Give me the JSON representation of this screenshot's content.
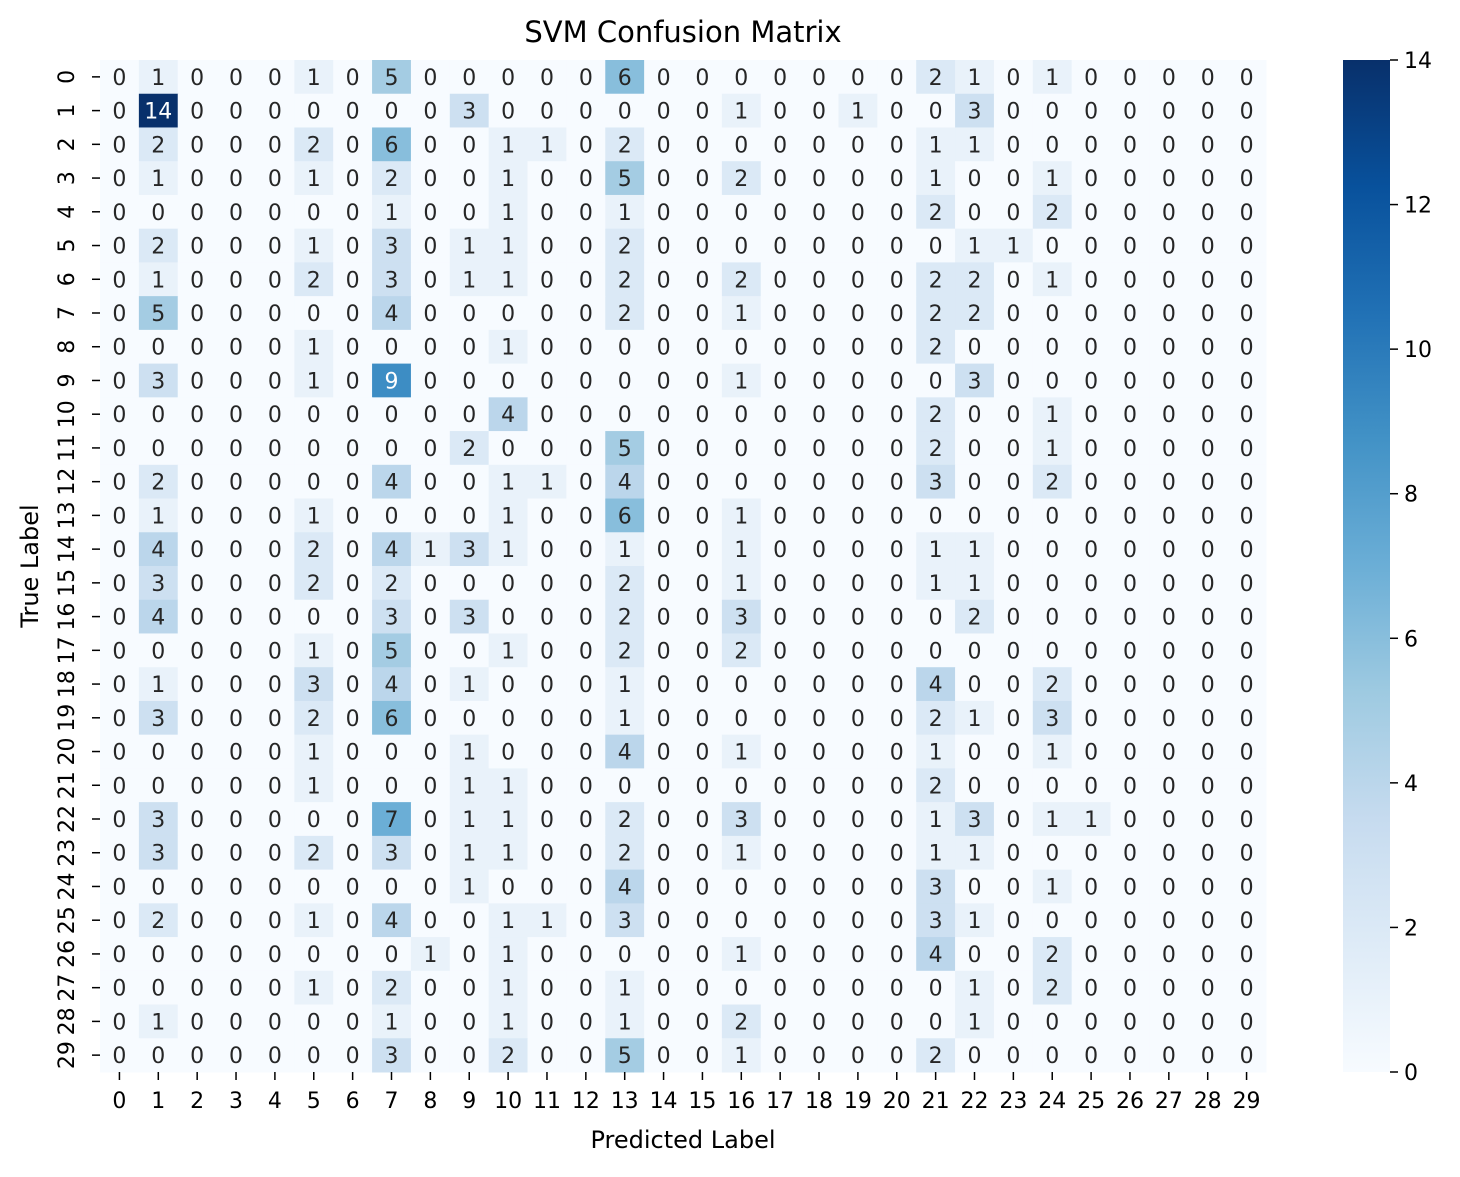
{
  "chart_data": {
    "type": "heatmap",
    "title": "SVM Confusion Matrix",
    "xlabel": "Predicted Label",
    "ylabel": "True Label",
    "x_categories": [
      "0",
      "1",
      "2",
      "3",
      "4",
      "5",
      "6",
      "7",
      "8",
      "9",
      "10",
      "11",
      "12",
      "13",
      "14",
      "15",
      "16",
      "17",
      "18",
      "19",
      "20",
      "21",
      "22",
      "23",
      "24",
      "25",
      "26",
      "27",
      "28",
      "29"
    ],
    "y_categories": [
      "0",
      "1",
      "2",
      "3",
      "4",
      "5",
      "6",
      "7",
      "8",
      "9",
      "10",
      "11",
      "12",
      "13",
      "14",
      "15",
      "16",
      "17",
      "18",
      "19",
      "20",
      "21",
      "22",
      "23",
      "24",
      "25",
      "26",
      "27",
      "28",
      "29"
    ],
    "values": [
      [
        0,
        1,
        0,
        0,
        0,
        1,
        0,
        5,
        0,
        0,
        0,
        0,
        0,
        6,
        0,
        0,
        0,
        0,
        0,
        0,
        0,
        2,
        1,
        0,
        1,
        0,
        0,
        0,
        0,
        0
      ],
      [
        0,
        14,
        0,
        0,
        0,
        0,
        0,
        0,
        0,
        3,
        0,
        0,
        0,
        0,
        0,
        0,
        1,
        0,
        0,
        1,
        0,
        0,
        3,
        0,
        0,
        0,
        0,
        0,
        0,
        0
      ],
      [
        0,
        2,
        0,
        0,
        0,
        2,
        0,
        6,
        0,
        0,
        1,
        1,
        0,
        2,
        0,
        0,
        0,
        0,
        0,
        0,
        0,
        1,
        1,
        0,
        0,
        0,
        0,
        0,
        0,
        0
      ],
      [
        0,
        1,
        0,
        0,
        0,
        1,
        0,
        2,
        0,
        0,
        1,
        0,
        0,
        5,
        0,
        0,
        2,
        0,
        0,
        0,
        0,
        1,
        0,
        0,
        1,
        0,
        0,
        0,
        0,
        0
      ],
      [
        0,
        0,
        0,
        0,
        0,
        0,
        0,
        1,
        0,
        0,
        1,
        0,
        0,
        1,
        0,
        0,
        0,
        0,
        0,
        0,
        0,
        2,
        0,
        0,
        2,
        0,
        0,
        0,
        0,
        0
      ],
      [
        0,
        2,
        0,
        0,
        0,
        1,
        0,
        3,
        0,
        1,
        1,
        0,
        0,
        2,
        0,
        0,
        0,
        0,
        0,
        0,
        0,
        0,
        1,
        1,
        0,
        0,
        0,
        0,
        0,
        0
      ],
      [
        0,
        1,
        0,
        0,
        0,
        2,
        0,
        3,
        0,
        1,
        1,
        0,
        0,
        2,
        0,
        0,
        2,
        0,
        0,
        0,
        0,
        2,
        2,
        0,
        1,
        0,
        0,
        0,
        0,
        0
      ],
      [
        0,
        5,
        0,
        0,
        0,
        0,
        0,
        4,
        0,
        0,
        0,
        0,
        0,
        2,
        0,
        0,
        1,
        0,
        0,
        0,
        0,
        2,
        2,
        0,
        0,
        0,
        0,
        0,
        0,
        0
      ],
      [
        0,
        0,
        0,
        0,
        0,
        1,
        0,
        0,
        0,
        0,
        1,
        0,
        0,
        0,
        0,
        0,
        0,
        0,
        0,
        0,
        0,
        2,
        0,
        0,
        0,
        0,
        0,
        0,
        0,
        0
      ],
      [
        0,
        3,
        0,
        0,
        0,
        1,
        0,
        9,
        0,
        0,
        0,
        0,
        0,
        0,
        0,
        0,
        1,
        0,
        0,
        0,
        0,
        0,
        3,
        0,
        0,
        0,
        0,
        0,
        0,
        0
      ],
      [
        0,
        0,
        0,
        0,
        0,
        0,
        0,
        0,
        0,
        0,
        4,
        0,
        0,
        0,
        0,
        0,
        0,
        0,
        0,
        0,
        0,
        2,
        0,
        0,
        1,
        0,
        0,
        0,
        0,
        0
      ],
      [
        0,
        0,
        0,
        0,
        0,
        0,
        0,
        0,
        0,
        2,
        0,
        0,
        0,
        5,
        0,
        0,
        0,
        0,
        0,
        0,
        0,
        2,
        0,
        0,
        1,
        0,
        0,
        0,
        0,
        0
      ],
      [
        0,
        2,
        0,
        0,
        0,
        0,
        0,
        4,
        0,
        0,
        1,
        1,
        0,
        4,
        0,
        0,
        0,
        0,
        0,
        0,
        0,
        3,
        0,
        0,
        2,
        0,
        0,
        0,
        0,
        0
      ],
      [
        0,
        1,
        0,
        0,
        0,
        1,
        0,
        0,
        0,
        0,
        1,
        0,
        0,
        6,
        0,
        0,
        1,
        0,
        0,
        0,
        0,
        0,
        0,
        0,
        0,
        0,
        0,
        0,
        0,
        0
      ],
      [
        0,
        4,
        0,
        0,
        0,
        2,
        0,
        4,
        1,
        3,
        1,
        0,
        0,
        1,
        0,
        0,
        1,
        0,
        0,
        0,
        0,
        1,
        1,
        0,
        0,
        0,
        0,
        0,
        0,
        0
      ],
      [
        0,
        3,
        0,
        0,
        0,
        2,
        0,
        2,
        0,
        0,
        0,
        0,
        0,
        2,
        0,
        0,
        1,
        0,
        0,
        0,
        0,
        1,
        1,
        0,
        0,
        0,
        0,
        0,
        0,
        0
      ],
      [
        0,
        4,
        0,
        0,
        0,
        0,
        0,
        3,
        0,
        3,
        0,
        0,
        0,
        2,
        0,
        0,
        3,
        0,
        0,
        0,
        0,
        0,
        2,
        0,
        0,
        0,
        0,
        0,
        0,
        0
      ],
      [
        0,
        0,
        0,
        0,
        0,
        1,
        0,
        5,
        0,
        0,
        1,
        0,
        0,
        2,
        0,
        0,
        2,
        0,
        0,
        0,
        0,
        0,
        0,
        0,
        0,
        0,
        0,
        0,
        0,
        0
      ],
      [
        0,
        1,
        0,
        0,
        0,
        3,
        0,
        4,
        0,
        1,
        0,
        0,
        0,
        1,
        0,
        0,
        0,
        0,
        0,
        0,
        0,
        4,
        0,
        0,
        2,
        0,
        0,
        0,
        0,
        0
      ],
      [
        0,
        3,
        0,
        0,
        0,
        2,
        0,
        6,
        0,
        0,
        0,
        0,
        0,
        1,
        0,
        0,
        0,
        0,
        0,
        0,
        0,
        2,
        1,
        0,
        3,
        0,
        0,
        0,
        0,
        0
      ],
      [
        0,
        0,
        0,
        0,
        0,
        1,
        0,
        0,
        0,
        1,
        0,
        0,
        0,
        4,
        0,
        0,
        1,
        0,
        0,
        0,
        0,
        1,
        0,
        0,
        1,
        0,
        0,
        0,
        0,
        0
      ],
      [
        0,
        0,
        0,
        0,
        0,
        1,
        0,
        0,
        0,
        1,
        1,
        0,
        0,
        0,
        0,
        0,
        0,
        0,
        0,
        0,
        0,
        2,
        0,
        0,
        0,
        0,
        0,
        0,
        0,
        0
      ],
      [
        0,
        3,
        0,
        0,
        0,
        0,
        0,
        7,
        0,
        1,
        1,
        0,
        0,
        2,
        0,
        0,
        3,
        0,
        0,
        0,
        0,
        1,
        3,
        0,
        1,
        1,
        0,
        0,
        0,
        0
      ],
      [
        0,
        3,
        0,
        0,
        0,
        2,
        0,
        3,
        0,
        1,
        1,
        0,
        0,
        2,
        0,
        0,
        1,
        0,
        0,
        0,
        0,
        1,
        1,
        0,
        0,
        0,
        0,
        0,
        0,
        0
      ],
      [
        0,
        0,
        0,
        0,
        0,
        0,
        0,
        0,
        0,
        1,
        0,
        0,
        0,
        4,
        0,
        0,
        0,
        0,
        0,
        0,
        0,
        3,
        0,
        0,
        1,
        0,
        0,
        0,
        0,
        0
      ],
      [
        0,
        2,
        0,
        0,
        0,
        1,
        0,
        4,
        0,
        0,
        1,
        1,
        0,
        3,
        0,
        0,
        0,
        0,
        0,
        0,
        0,
        3,
        1,
        0,
        0,
        0,
        0,
        0,
        0,
        0
      ],
      [
        0,
        0,
        0,
        0,
        0,
        0,
        0,
        0,
        1,
        0,
        1,
        0,
        0,
        0,
        0,
        0,
        1,
        0,
        0,
        0,
        0,
        4,
        0,
        0,
        2,
        0,
        0,
        0,
        0,
        0
      ],
      [
        0,
        0,
        0,
        0,
        0,
        1,
        0,
        2,
        0,
        0,
        1,
        0,
        0,
        1,
        0,
        0,
        0,
        0,
        0,
        0,
        0,
        0,
        1,
        0,
        2,
        0,
        0,
        0,
        0,
        0
      ],
      [
        0,
        1,
        0,
        0,
        0,
        0,
        0,
        1,
        0,
        0,
        1,
        0,
        0,
        1,
        0,
        0,
        2,
        0,
        0,
        0,
        0,
        0,
        1,
        0,
        0,
        0,
        0,
        0,
        0,
        0
      ],
      [
        0,
        0,
        0,
        0,
        0,
        0,
        0,
        3,
        0,
        0,
        2,
        0,
        0,
        5,
        0,
        0,
        1,
        0,
        0,
        0,
        0,
        2,
        0,
        0,
        0,
        0,
        0,
        0,
        0,
        0
      ]
    ],
    "vmin": 0,
    "vmax": 14,
    "colormap": "Blues",
    "colormap_stops": [
      "#f7fbff",
      "#deebf7",
      "#c6dbef",
      "#9ecae1",
      "#6baed6",
      "#4292c6",
      "#2171b5",
      "#08519c",
      "#08306b"
    ],
    "colorbar_ticks": [
      0,
      2,
      4,
      6,
      8,
      10,
      12,
      14
    ],
    "grid": false,
    "legend": "colorbar-right"
  }
}
